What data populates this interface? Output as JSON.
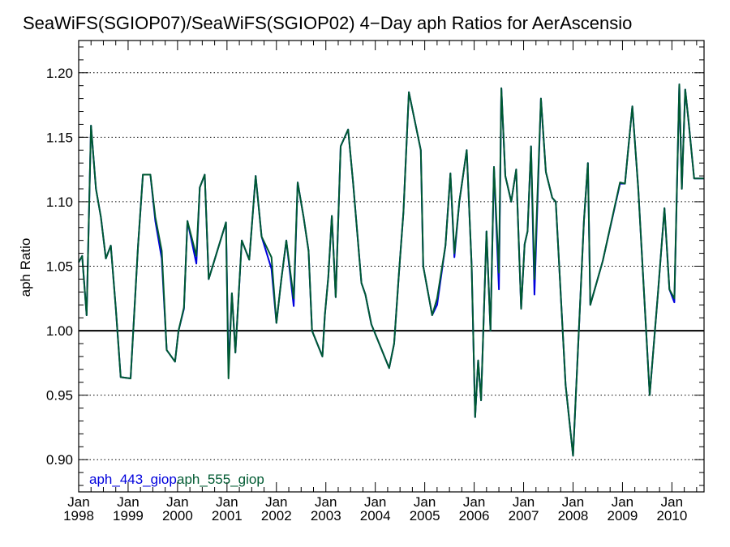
{
  "chart_data": {
    "type": "line",
    "title": "SeaWiFS(SGIOP07)/SeaWiFS(SGIOP02) 4−Day aph Ratios for AerAscensio",
    "xlabel": "",
    "ylabel": "aph Ratio",
    "xlim": [
      1998.0,
      2010.65
    ],
    "ylim": [
      0.875,
      1.225
    ],
    "yticks": [
      0.9,
      0.95,
      1.0,
      1.05,
      1.1,
      1.15,
      1.2
    ],
    "ytick_labels": [
      "0.90",
      "0.95",
      "1.00",
      "1.05",
      "1.10",
      "1.15",
      "1.20"
    ],
    "xticks": [
      {
        "value": 1998,
        "month": "Jan",
        "year": "1998"
      },
      {
        "value": 1999,
        "month": "Jan",
        "year": "1999"
      },
      {
        "value": 2000,
        "month": "Jan",
        "year": "2000"
      },
      {
        "value": 2001,
        "month": "Jan",
        "year": "2001"
      },
      {
        "value": 2002,
        "month": "Jan",
        "year": "2002"
      },
      {
        "value": 2003,
        "month": "Jan",
        "year": "2003"
      },
      {
        "value": 2004,
        "month": "Jan",
        "year": "2004"
      },
      {
        "value": 2005,
        "month": "Jan",
        "year": "2005"
      },
      {
        "value": 2006,
        "month": "Jan",
        "year": "2006"
      },
      {
        "value": 2007,
        "month": "Jan",
        "year": "2007"
      },
      {
        "value": 2008,
        "month": "Jan",
        "year": "2008"
      },
      {
        "value": 2009,
        "month": "Jan",
        "year": "2009"
      },
      {
        "value": 2010,
        "month": "Jan",
        "year": "2010"
      }
    ],
    "reference_line": 1.0,
    "grid": "horizontal dotted",
    "legend_position": "bottom-left",
    "series": [
      {
        "name": "aph_443_giop",
        "color": "#0000dd",
        "x": [
          1998.0,
          1998.07,
          1998.16,
          1998.25,
          1998.35,
          1998.45,
          1998.55,
          1998.65,
          1998.75,
          1998.85,
          1999.05,
          1999.2,
          1999.3,
          1999.45,
          1999.55,
          1999.68,
          1999.78,
          1999.95,
          2000.02,
          2000.13,
          2000.2,
          2000.38,
          2000.45,
          2000.55,
          2000.63,
          2000.98,
          2001.03,
          2001.1,
          2001.17,
          2001.3,
          2001.45,
          2001.58,
          2001.7,
          2001.9,
          2002.0,
          2002.1,
          2002.2,
          2002.35,
          2002.43,
          2002.55,
          2002.65,
          2002.72,
          2002.93,
          2002.98,
          2003.05,
          2003.12,
          2003.2,
          2003.3,
          2003.45,
          2003.55,
          2003.72,
          2003.8,
          2003.92,
          2004.28,
          2004.38,
          2004.48,
          2004.57,
          2004.68,
          2004.92,
          2004.97,
          2005.15,
          2005.25,
          2005.42,
          2005.52,
          2005.6,
          2005.7,
          2005.85,
          2005.95,
          2006.02,
          2006.08,
          2006.14,
          2006.25,
          2006.33,
          2006.4,
          2006.5,
          2006.55,
          2006.63,
          2006.75,
          2006.85,
          2006.95,
          2007.02,
          2007.08,
          2007.15,
          2007.22,
          2007.35,
          2007.45,
          2007.58,
          2007.65,
          2007.85,
          2008.0,
          2008.22,
          2008.3,
          2008.35,
          2008.6,
          2008.95,
          2009.05,
          2009.1,
          2009.2,
          2009.32,
          2009.55,
          2009.72,
          2009.85,
          2009.95,
          2010.05,
          2010.15,
          2010.2,
          2010.27,
          2010.33,
          2010.45,
          2010.53,
          2010.65
        ],
        "values": [
          1.053,
          1.058,
          1.012,
          1.159,
          1.11,
          1.088,
          1.056,
          1.066,
          1.018,
          0.964,
          0.963,
          1.065,
          1.121,
          1.121,
          1.085,
          1.056,
          0.985,
          0.976,
          1.0,
          1.017,
          1.085,
          1.052,
          1.111,
          1.121,
          1.04,
          1.084,
          0.97,
          1.029,
          0.983,
          1.07,
          1.055,
          1.12,
          1.073,
          1.048,
          1.006,
          1.04,
          1.07,
          1.019,
          1.115,
          1.088,
          1.062,
          1.0,
          0.98,
          1.012,
          1.042,
          1.089,
          1.026,
          1.143,
          1.156,
          1.115,
          1.037,
          1.028,
          1.005,
          0.971,
          0.99,
          1.045,
          1.092,
          1.185,
          1.14,
          1.05,
          1.012,
          1.02,
          1.066,
          1.122,
          1.057,
          1.1,
          1.14,
          1.05,
          0.933,
          0.977,
          0.946,
          1.077,
          1.0,
          1.127,
          1.032,
          1.188,
          1.12,
          1.1,
          1.125,
          1.017,
          1.067,
          1.077,
          1.143,
          1.028,
          1.18,
          1.123,
          1.103,
          1.1,
          0.958,
          0.903,
          1.085,
          1.13,
          1.02,
          1.054,
          1.114,
          1.114,
          1.134,
          1.174,
          1.11,
          0.95,
          1.03,
          1.095,
          1.032,
          1.022,
          1.191,
          1.11,
          1.187,
          1.165,
          1.118,
          1.118,
          1.118
        ]
      },
      {
        "name": "aph_555_giop",
        "color": "#005a32",
        "x": [
          1998.0,
          1998.07,
          1998.16,
          1998.25,
          1998.35,
          1998.45,
          1998.55,
          1998.65,
          1998.75,
          1998.85,
          1999.05,
          1999.2,
          1999.3,
          1999.45,
          1999.55,
          1999.68,
          1999.78,
          1999.95,
          2000.02,
          2000.13,
          2000.2,
          2000.38,
          2000.45,
          2000.55,
          2000.63,
          2000.98,
          2001.03,
          2001.1,
          2001.17,
          2001.3,
          2001.45,
          2001.58,
          2001.7,
          2001.9,
          2002.0,
          2002.1,
          2002.2,
          2002.35,
          2002.43,
          2002.55,
          2002.65,
          2002.72,
          2002.93,
          2002.98,
          2003.05,
          2003.12,
          2003.2,
          2003.3,
          2003.45,
          2003.55,
          2003.72,
          2003.8,
          2003.92,
          2004.28,
          2004.38,
          2004.48,
          2004.57,
          2004.68,
          2004.92,
          2004.97,
          2005.15,
          2005.25,
          2005.42,
          2005.52,
          2005.6,
          2005.7,
          2005.85,
          2005.95,
          2006.02,
          2006.08,
          2006.14,
          2006.25,
          2006.33,
          2006.4,
          2006.5,
          2006.55,
          2006.63,
          2006.75,
          2006.85,
          2006.95,
          2007.02,
          2007.08,
          2007.15,
          2007.22,
          2007.35,
          2007.45,
          2007.58,
          2007.65,
          2007.85,
          2008.0,
          2008.22,
          2008.3,
          2008.35,
          2008.6,
          2008.95,
          2009.05,
          2009.1,
          2009.2,
          2009.32,
          2009.55,
          2009.72,
          2009.85,
          2009.95,
          2010.05,
          2010.15,
          2010.2,
          2010.27,
          2010.33,
          2010.45,
          2010.53,
          2010.65
        ],
        "values": [
          1.053,
          1.058,
          1.012,
          1.159,
          1.11,
          1.088,
          1.056,
          1.066,
          1.018,
          0.964,
          0.963,
          1.065,
          1.121,
          1.121,
          1.088,
          1.062,
          0.985,
          0.976,
          1.0,
          1.018,
          1.085,
          1.058,
          1.111,
          1.121,
          1.04,
          1.084,
          0.963,
          1.029,
          0.983,
          1.07,
          1.055,
          1.12,
          1.073,
          1.057,
          1.006,
          1.04,
          1.07,
          1.025,
          1.115,
          1.088,
          1.062,
          1.0,
          0.98,
          1.012,
          1.042,
          1.089,
          1.026,
          1.143,
          1.156,
          1.115,
          1.037,
          1.028,
          1.005,
          0.971,
          0.99,
          1.045,
          1.092,
          1.185,
          1.14,
          1.05,
          1.012,
          1.025,
          1.066,
          1.122,
          1.06,
          1.1,
          1.14,
          1.05,
          0.933,
          0.977,
          0.946,
          1.077,
          1.0,
          1.127,
          1.045,
          1.188,
          1.12,
          1.1,
          1.125,
          1.017,
          1.067,
          1.077,
          1.143,
          1.04,
          1.18,
          1.123,
          1.103,
          1.1,
          0.958,
          0.903,
          1.085,
          1.13,
          1.02,
          1.054,
          1.115,
          1.114,
          1.134,
          1.174,
          1.11,
          0.95,
          1.03,
          1.095,
          1.032,
          1.025,
          1.191,
          1.11,
          1.187,
          1.165,
          1.118,
          1.118,
          1.118
        ]
      }
    ]
  }
}
